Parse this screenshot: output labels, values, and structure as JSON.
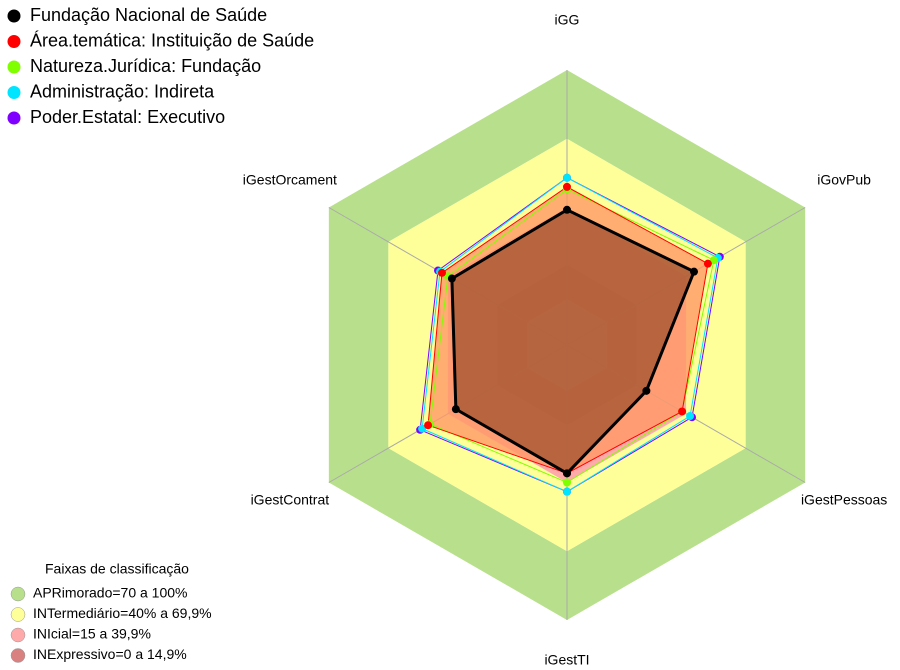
{
  "chart_data": {
    "type": "radar",
    "categories": [
      "iGG",
      "iGovPub",
      "iGestPessoas",
      "iGestTI",
      "iGestContrat",
      "iGestOrcament"
    ],
    "rlim": [
      -20,
      100
    ],
    "series": [
      {
        "name": "Fundação Nacional de Saúde",
        "color": "#000000",
        "fill": "#a0522d",
        "values": [
          39,
          44,
          20,
          36,
          36,
          38
        ]
      },
      {
        "name": "Área.temática: Instituição de Saúde",
        "color": "#ff0000",
        "fill": "#ff9966",
        "values": [
          49,
          51,
          38,
          36,
          50,
          43
        ]
      },
      {
        "name": "Natureza.Jurídica: Fundação",
        "color": "#80ff00",
        "values": [
          48,
          54,
          38,
          40,
          49,
          40
        ]
      },
      {
        "name": "Administração: Indireta",
        "color": "#00e5ff",
        "values": [
          53,
          56,
          42,
          44,
          53,
          44
        ]
      },
      {
        "name": "Poder.Estatal: Executivo",
        "color": "#8000ff",
        "values": [
          53,
          57,
          43,
          44,
          54,
          45
        ]
      }
    ],
    "bands_title": "Faixas de classificação",
    "bands": [
      {
        "label": "APRimorado=70 a 100%",
        "color": "#b8e08c",
        "from": 70,
        "to": 100
      },
      {
        "label": "INTermediário=40% a 69,9%",
        "color": "#ffff99",
        "from": 40,
        "to": 70
      },
      {
        "label": "INIcial=15 a 39,9%",
        "color": "#ffaaaa",
        "from": 15,
        "to": 40
      },
      {
        "label": "INExpressivo=0 a 14,9%",
        "color": "#d98080",
        "from": 0,
        "to": 15
      }
    ]
  }
}
